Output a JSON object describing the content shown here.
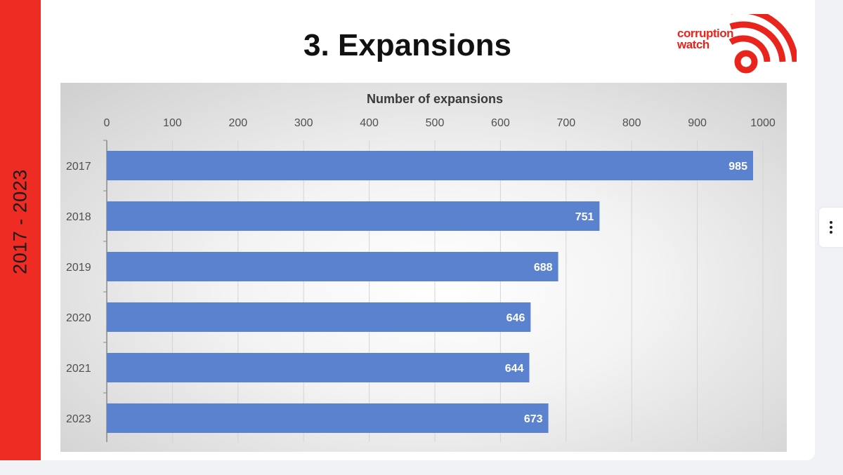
{
  "side_band": {
    "label": "2017 - 2023"
  },
  "slide": {
    "title": "3. Expansions"
  },
  "logo": {
    "line1": "corruption",
    "line2": "watch"
  },
  "colors": {
    "band": "#ee2c24",
    "bar": "#5b82cf",
    "logo": "#e8241c"
  },
  "menu": {
    "icon": "more-vertical-icon"
  },
  "chart_data": {
    "type": "bar",
    "orientation": "horizontal",
    "title": "",
    "xlabel": "Number of expansions",
    "ylabel": "",
    "xlim": [
      0,
      1000
    ],
    "xticks": [
      0,
      100,
      200,
      300,
      400,
      500,
      600,
      700,
      800,
      900,
      1000
    ],
    "x_axis_position": "top",
    "grid": true,
    "categories": [
      "2017",
      "2018",
      "2019",
      "2020",
      "2021",
      "2023"
    ],
    "values": [
      985,
      751,
      688,
      646,
      644,
      673
    ],
    "data_labels": [
      "985",
      "751",
      "688",
      "646",
      "644",
      "673"
    ]
  }
}
